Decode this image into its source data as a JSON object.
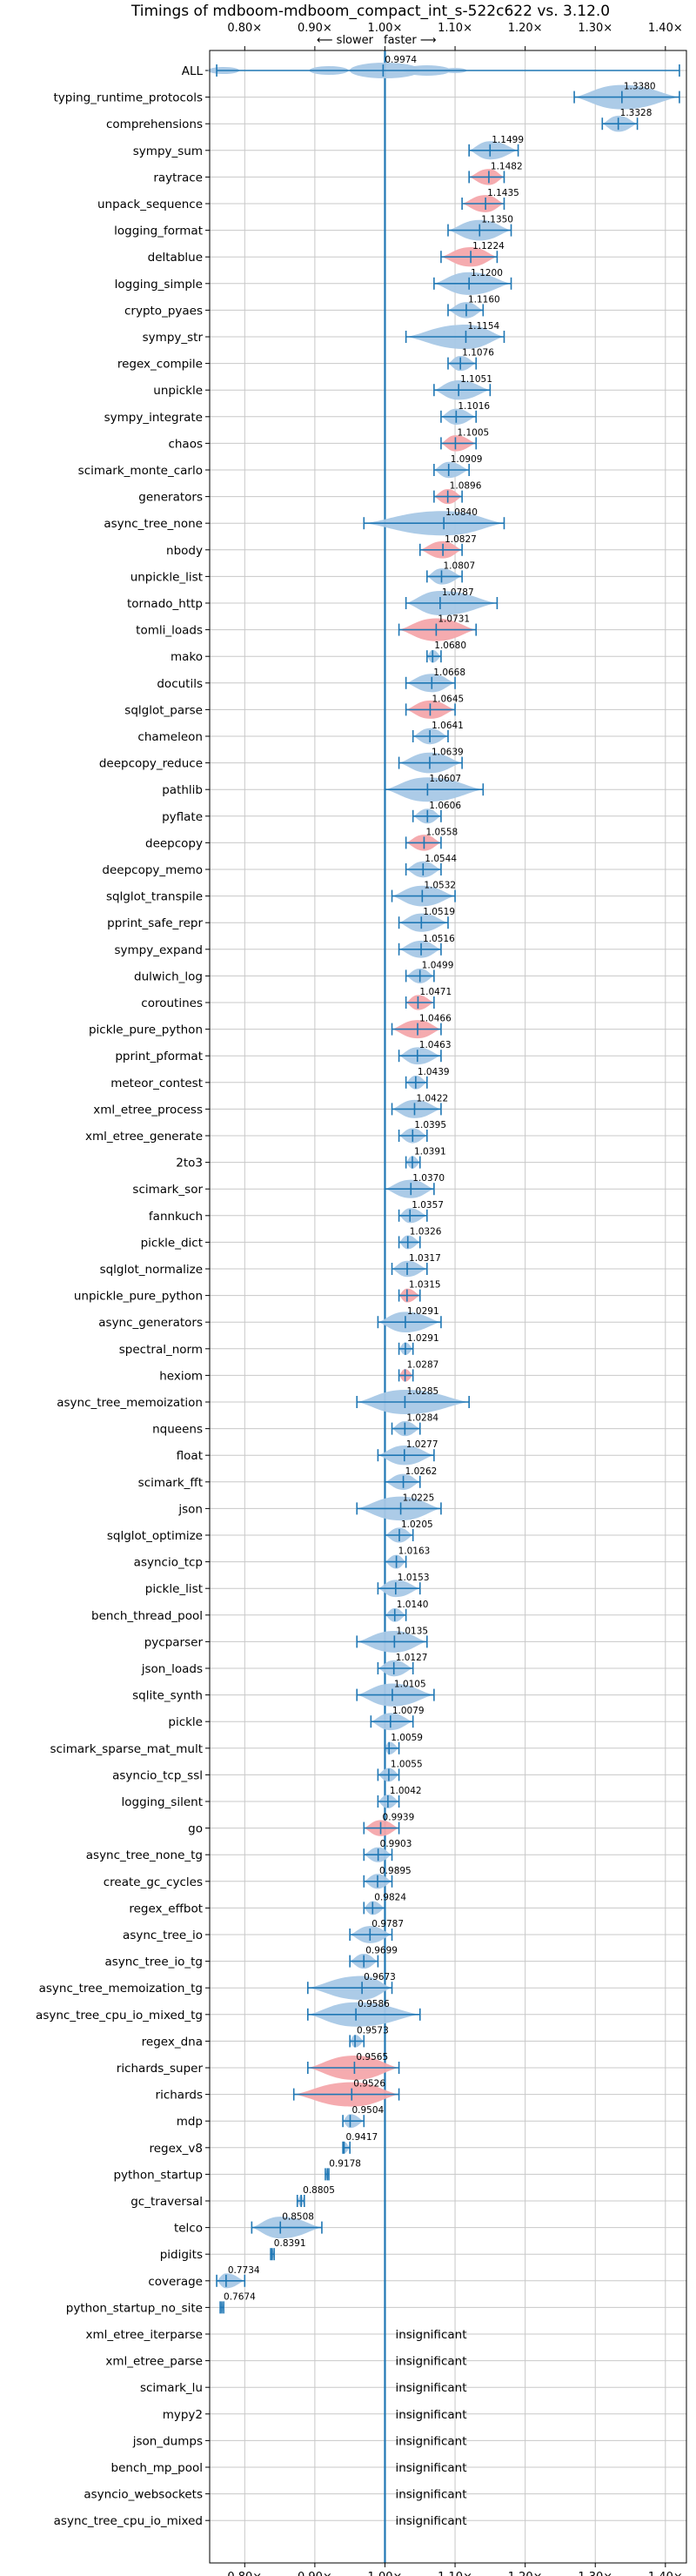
{
  "chart_data": {
    "type": "violin",
    "title": "Timings of mdboom-mdboom_compact_int_s-522c622 vs. 3.12.0",
    "direction_labels": {
      "slower": "⟵ slower",
      "faster": "faster ⟶"
    },
    "xlim": [
      0.75,
      1.43
    ],
    "xticks": [
      {
        "value": 0.8,
        "label": "0.80×"
      },
      {
        "value": 0.9,
        "label": "0.90×"
      },
      {
        "value": 1.0,
        "label": "1.00×"
      },
      {
        "value": 1.1,
        "label": "1.10×"
      },
      {
        "value": 1.2,
        "label": "1.20×"
      },
      {
        "value": 1.3,
        "label": "1.30×"
      },
      {
        "value": 1.4,
        "label": "1.40×"
      }
    ],
    "colors": {
      "faster": "#a8c8e6",
      "slower": "#f4a7ab",
      "line": "#1f77b4",
      "grid": "#c8c8c8"
    },
    "insignificant_text": "insignificant",
    "rows": [
      {
        "name": "ALL",
        "value": 0.9974,
        "label": "0.9974",
        "min": 0.76,
        "max": 1.42,
        "color": "blue"
      },
      {
        "name": "typing_runtime_protocols",
        "value": 1.338,
        "label": "1.3380",
        "min": 1.27,
        "max": 1.42,
        "color": "blue"
      },
      {
        "name": "comprehensions",
        "value": 1.3328,
        "label": "1.3328",
        "min": 1.31,
        "max": 1.36,
        "color": "blue"
      },
      {
        "name": "sympy_sum",
        "value": 1.1499,
        "label": "1.1499",
        "min": 1.12,
        "max": 1.19,
        "color": "blue"
      },
      {
        "name": "raytrace",
        "value": 1.1482,
        "label": "1.1482",
        "min": 1.12,
        "max": 1.17,
        "color": "red"
      },
      {
        "name": "unpack_sequence",
        "value": 1.1435,
        "label": "1.1435",
        "min": 1.11,
        "max": 1.17,
        "color": "red"
      },
      {
        "name": "logging_format",
        "value": 1.135,
        "label": "1.1350",
        "min": 1.09,
        "max": 1.18,
        "color": "blue"
      },
      {
        "name": "deltablue",
        "value": 1.1224,
        "label": "1.1224",
        "min": 1.08,
        "max": 1.16,
        "color": "red"
      },
      {
        "name": "logging_simple",
        "value": 1.12,
        "label": "1.1200",
        "min": 1.07,
        "max": 1.18,
        "color": "blue"
      },
      {
        "name": "crypto_pyaes",
        "value": 1.116,
        "label": "1.1160",
        "min": 1.09,
        "max": 1.14,
        "color": "blue"
      },
      {
        "name": "sympy_str",
        "value": 1.1154,
        "label": "1.1154",
        "min": 1.03,
        "max": 1.17,
        "color": "blue"
      },
      {
        "name": "regex_compile",
        "value": 1.1076,
        "label": "1.1076",
        "min": 1.09,
        "max": 1.13,
        "color": "blue"
      },
      {
        "name": "unpickle",
        "value": 1.1051,
        "label": "1.1051",
        "min": 1.07,
        "max": 1.15,
        "color": "blue"
      },
      {
        "name": "sympy_integrate",
        "value": 1.1016,
        "label": "1.1016",
        "min": 1.08,
        "max": 1.13,
        "color": "blue"
      },
      {
        "name": "chaos",
        "value": 1.1005,
        "label": "1.1005",
        "min": 1.08,
        "max": 1.13,
        "color": "red"
      },
      {
        "name": "scimark_monte_carlo",
        "value": 1.0909,
        "label": "1.0909",
        "min": 1.07,
        "max": 1.12,
        "color": "blue"
      },
      {
        "name": "generators",
        "value": 1.0896,
        "label": "1.0896",
        "min": 1.07,
        "max": 1.11,
        "color": "red"
      },
      {
        "name": "async_tree_none",
        "value": 1.084,
        "label": "1.0840",
        "min": 0.97,
        "max": 1.17,
        "color": "blue"
      },
      {
        "name": "nbody",
        "value": 1.0827,
        "label": "1.0827",
        "min": 1.05,
        "max": 1.11,
        "color": "red"
      },
      {
        "name": "unpickle_list",
        "value": 1.0807,
        "label": "1.0807",
        "min": 1.06,
        "max": 1.11,
        "color": "blue"
      },
      {
        "name": "tornado_http",
        "value": 1.0787,
        "label": "1.0787",
        "min": 1.03,
        "max": 1.16,
        "color": "blue"
      },
      {
        "name": "tomli_loads",
        "value": 1.0731,
        "label": "1.0731",
        "min": 1.02,
        "max": 1.13,
        "color": "red"
      },
      {
        "name": "mako",
        "value": 1.068,
        "label": "1.0680",
        "min": 1.06,
        "max": 1.08,
        "color": "blue"
      },
      {
        "name": "docutils",
        "value": 1.0668,
        "label": "1.0668",
        "min": 1.03,
        "max": 1.1,
        "color": "blue"
      },
      {
        "name": "sqlglot_parse",
        "value": 1.0645,
        "label": "1.0645",
        "min": 1.03,
        "max": 1.1,
        "color": "red"
      },
      {
        "name": "chameleon",
        "value": 1.0641,
        "label": "1.0641",
        "min": 1.04,
        "max": 1.09,
        "color": "blue"
      },
      {
        "name": "deepcopy_reduce",
        "value": 1.0639,
        "label": "1.0639",
        "min": 1.02,
        "max": 1.11,
        "color": "blue"
      },
      {
        "name": "pathlib",
        "value": 1.0607,
        "label": "1.0607",
        "min": 1.0,
        "max": 1.14,
        "color": "blue"
      },
      {
        "name": "pyflate",
        "value": 1.0606,
        "label": "1.0606",
        "min": 1.04,
        "max": 1.08,
        "color": "blue"
      },
      {
        "name": "deepcopy",
        "value": 1.0558,
        "label": "1.0558",
        "min": 1.03,
        "max": 1.08,
        "color": "red"
      },
      {
        "name": "deepcopy_memo",
        "value": 1.0544,
        "label": "1.0544",
        "min": 1.03,
        "max": 1.08,
        "color": "blue"
      },
      {
        "name": "sqlglot_transpile",
        "value": 1.0532,
        "label": "1.0532",
        "min": 1.01,
        "max": 1.1,
        "color": "blue"
      },
      {
        "name": "pprint_safe_repr",
        "value": 1.0519,
        "label": "1.0519",
        "min": 1.02,
        "max": 1.09,
        "color": "blue"
      },
      {
        "name": "sympy_expand",
        "value": 1.0516,
        "label": "1.0516",
        "min": 1.02,
        "max": 1.08,
        "color": "blue"
      },
      {
        "name": "dulwich_log",
        "value": 1.0499,
        "label": "1.0499",
        "min": 1.03,
        "max": 1.07,
        "color": "blue"
      },
      {
        "name": "coroutines",
        "value": 1.0471,
        "label": "1.0471",
        "min": 1.03,
        "max": 1.07,
        "color": "red"
      },
      {
        "name": "pickle_pure_python",
        "value": 1.0466,
        "label": "1.0466",
        "min": 1.01,
        "max": 1.08,
        "color": "red"
      },
      {
        "name": "pprint_pformat",
        "value": 1.0463,
        "label": "1.0463",
        "min": 1.02,
        "max": 1.08,
        "color": "blue"
      },
      {
        "name": "meteor_contest",
        "value": 1.0439,
        "label": "1.0439",
        "min": 1.03,
        "max": 1.06,
        "color": "blue"
      },
      {
        "name": "xml_etree_process",
        "value": 1.0422,
        "label": "1.0422",
        "min": 1.01,
        "max": 1.08,
        "color": "blue"
      },
      {
        "name": "xml_etree_generate",
        "value": 1.0395,
        "label": "1.0395",
        "min": 1.02,
        "max": 1.06,
        "color": "blue"
      },
      {
        "name": "2to3",
        "value": 1.0391,
        "label": "1.0391",
        "min": 1.03,
        "max": 1.05,
        "color": "blue"
      },
      {
        "name": "scimark_sor",
        "value": 1.037,
        "label": "1.0370",
        "min": 1.0,
        "max": 1.07,
        "color": "blue"
      },
      {
        "name": "fannkuch",
        "value": 1.0357,
        "label": "1.0357",
        "min": 1.02,
        "max": 1.06,
        "color": "blue"
      },
      {
        "name": "pickle_dict",
        "value": 1.0326,
        "label": "1.0326",
        "min": 1.02,
        "max": 1.05,
        "color": "blue"
      },
      {
        "name": "sqlglot_normalize",
        "value": 1.0317,
        "label": "1.0317",
        "min": 1.01,
        "max": 1.06,
        "color": "blue"
      },
      {
        "name": "unpickle_pure_python",
        "value": 1.0315,
        "label": "1.0315",
        "min": 1.02,
        "max": 1.05,
        "color": "red"
      },
      {
        "name": "async_generators",
        "value": 1.0291,
        "label": "1.0291",
        "min": 0.99,
        "max": 1.08,
        "color": "blue"
      },
      {
        "name": "spectral_norm",
        "value": 1.0291,
        "label": "1.0291",
        "min": 1.02,
        "max": 1.04,
        "color": "blue"
      },
      {
        "name": "hexiom",
        "value": 1.0287,
        "label": "1.0287",
        "min": 1.02,
        "max": 1.04,
        "color": "red"
      },
      {
        "name": "async_tree_memoization",
        "value": 1.0285,
        "label": "1.0285",
        "min": 0.96,
        "max": 1.12,
        "color": "blue"
      },
      {
        "name": "nqueens",
        "value": 1.0284,
        "label": "1.0284",
        "min": 1.01,
        "max": 1.05,
        "color": "blue"
      },
      {
        "name": "float",
        "value": 1.0277,
        "label": "1.0277",
        "min": 0.99,
        "max": 1.07,
        "color": "blue"
      },
      {
        "name": "scimark_fft",
        "value": 1.0262,
        "label": "1.0262",
        "min": 1.0,
        "max": 1.05,
        "color": "blue"
      },
      {
        "name": "json",
        "value": 1.0225,
        "label": "1.0225",
        "min": 0.96,
        "max": 1.08,
        "color": "blue"
      },
      {
        "name": "sqlglot_optimize",
        "value": 1.0205,
        "label": "1.0205",
        "min": 1.0,
        "max": 1.04,
        "color": "blue"
      },
      {
        "name": "asyncio_tcp",
        "value": 1.0163,
        "label": "1.0163",
        "min": 1.0,
        "max": 1.03,
        "color": "blue"
      },
      {
        "name": "pickle_list",
        "value": 1.0153,
        "label": "1.0153",
        "min": 0.99,
        "max": 1.05,
        "color": "blue"
      },
      {
        "name": "bench_thread_pool",
        "value": 1.014,
        "label": "1.0140",
        "min": 1.0,
        "max": 1.03,
        "color": "blue"
      },
      {
        "name": "pycparser",
        "value": 1.0135,
        "label": "1.0135",
        "min": 0.96,
        "max": 1.06,
        "color": "blue"
      },
      {
        "name": "json_loads",
        "value": 1.0127,
        "label": "1.0127",
        "min": 0.99,
        "max": 1.04,
        "color": "blue"
      },
      {
        "name": "sqlite_synth",
        "value": 1.0105,
        "label": "1.0105",
        "min": 0.96,
        "max": 1.07,
        "color": "blue"
      },
      {
        "name": "pickle",
        "value": 1.0079,
        "label": "1.0079",
        "min": 0.98,
        "max": 1.04,
        "color": "blue"
      },
      {
        "name": "scimark_sparse_mat_mult",
        "value": 1.0059,
        "label": "1.0059",
        "min": 1.0,
        "max": 1.02,
        "color": "blue"
      },
      {
        "name": "asyncio_tcp_ssl",
        "value": 1.0055,
        "label": "1.0055",
        "min": 0.99,
        "max": 1.02,
        "color": "blue"
      },
      {
        "name": "logging_silent",
        "value": 1.0042,
        "label": "1.0042",
        "min": 0.99,
        "max": 1.02,
        "color": "blue"
      },
      {
        "name": "go",
        "value": 0.9939,
        "label": "0.9939",
        "min": 0.97,
        "max": 1.02,
        "color": "red"
      },
      {
        "name": "async_tree_none_tg",
        "value": 0.9903,
        "label": "0.9903",
        "min": 0.97,
        "max": 1.01,
        "color": "blue"
      },
      {
        "name": "create_gc_cycles",
        "value": 0.9895,
        "label": "0.9895",
        "min": 0.97,
        "max": 1.01,
        "color": "blue"
      },
      {
        "name": "regex_effbot",
        "value": 0.9824,
        "label": "0.9824",
        "min": 0.97,
        "max": 1.0,
        "color": "blue"
      },
      {
        "name": "async_tree_io",
        "value": 0.9787,
        "label": "0.9787",
        "min": 0.95,
        "max": 1.01,
        "color": "blue"
      },
      {
        "name": "async_tree_io_tg",
        "value": 0.9699,
        "label": "0.9699",
        "min": 0.95,
        "max": 0.99,
        "color": "blue"
      },
      {
        "name": "async_tree_memoization_tg",
        "value": 0.9673,
        "label": "0.9673",
        "min": 0.89,
        "max": 1.01,
        "color": "blue"
      },
      {
        "name": "async_tree_cpu_io_mixed_tg",
        "value": 0.9586,
        "label": "0.9586",
        "min": 0.89,
        "max": 1.05,
        "color": "blue"
      },
      {
        "name": "regex_dna",
        "value": 0.9573,
        "label": "0.9573",
        "min": 0.95,
        "max": 0.97,
        "color": "blue"
      },
      {
        "name": "richards_super",
        "value": 0.9565,
        "label": "0.9565",
        "min": 0.89,
        "max": 1.02,
        "color": "red"
      },
      {
        "name": "richards",
        "value": 0.9526,
        "label": "0.9526",
        "min": 0.87,
        "max": 1.02,
        "color": "red"
      },
      {
        "name": "mdp",
        "value": 0.9504,
        "label": "0.9504",
        "min": 0.94,
        "max": 0.97,
        "color": "blue"
      },
      {
        "name": "regex_v8",
        "value": 0.9417,
        "label": "0.9417",
        "min": 0.94,
        "max": 0.95,
        "color": "blue"
      },
      {
        "name": "python_startup",
        "value": 0.9178,
        "label": "0.9178",
        "min": 0.915,
        "max": 0.92,
        "color": "blue"
      },
      {
        "name": "gc_traversal",
        "value": 0.8805,
        "label": "0.8805",
        "min": 0.875,
        "max": 0.885,
        "color": "blue"
      },
      {
        "name": "telco",
        "value": 0.8508,
        "label": "0.8508",
        "min": 0.81,
        "max": 0.91,
        "color": "blue"
      },
      {
        "name": "pidigits",
        "value": 0.8391,
        "label": "0.8391",
        "min": 0.837,
        "max": 0.842,
        "color": "blue"
      },
      {
        "name": "coverage",
        "value": 0.7734,
        "label": "0.7734",
        "min": 0.76,
        "max": 0.8,
        "color": "blue"
      },
      {
        "name": "python_startup_no_site",
        "value": 0.7674,
        "label": "0.7674",
        "min": 0.765,
        "max": 0.77,
        "color": "blue"
      },
      {
        "name": "xml_etree_iterparse",
        "insignificant": true
      },
      {
        "name": "xml_etree_parse",
        "insignificant": true
      },
      {
        "name": "scimark_lu",
        "insignificant": true
      },
      {
        "name": "mypy2",
        "insignificant": true
      },
      {
        "name": "json_dumps",
        "insignificant": true
      },
      {
        "name": "bench_mp_pool",
        "insignificant": true
      },
      {
        "name": "asyncio_websockets",
        "insignificant": true
      },
      {
        "name": "async_tree_cpu_io_mixed",
        "insignificant": true
      }
    ]
  }
}
